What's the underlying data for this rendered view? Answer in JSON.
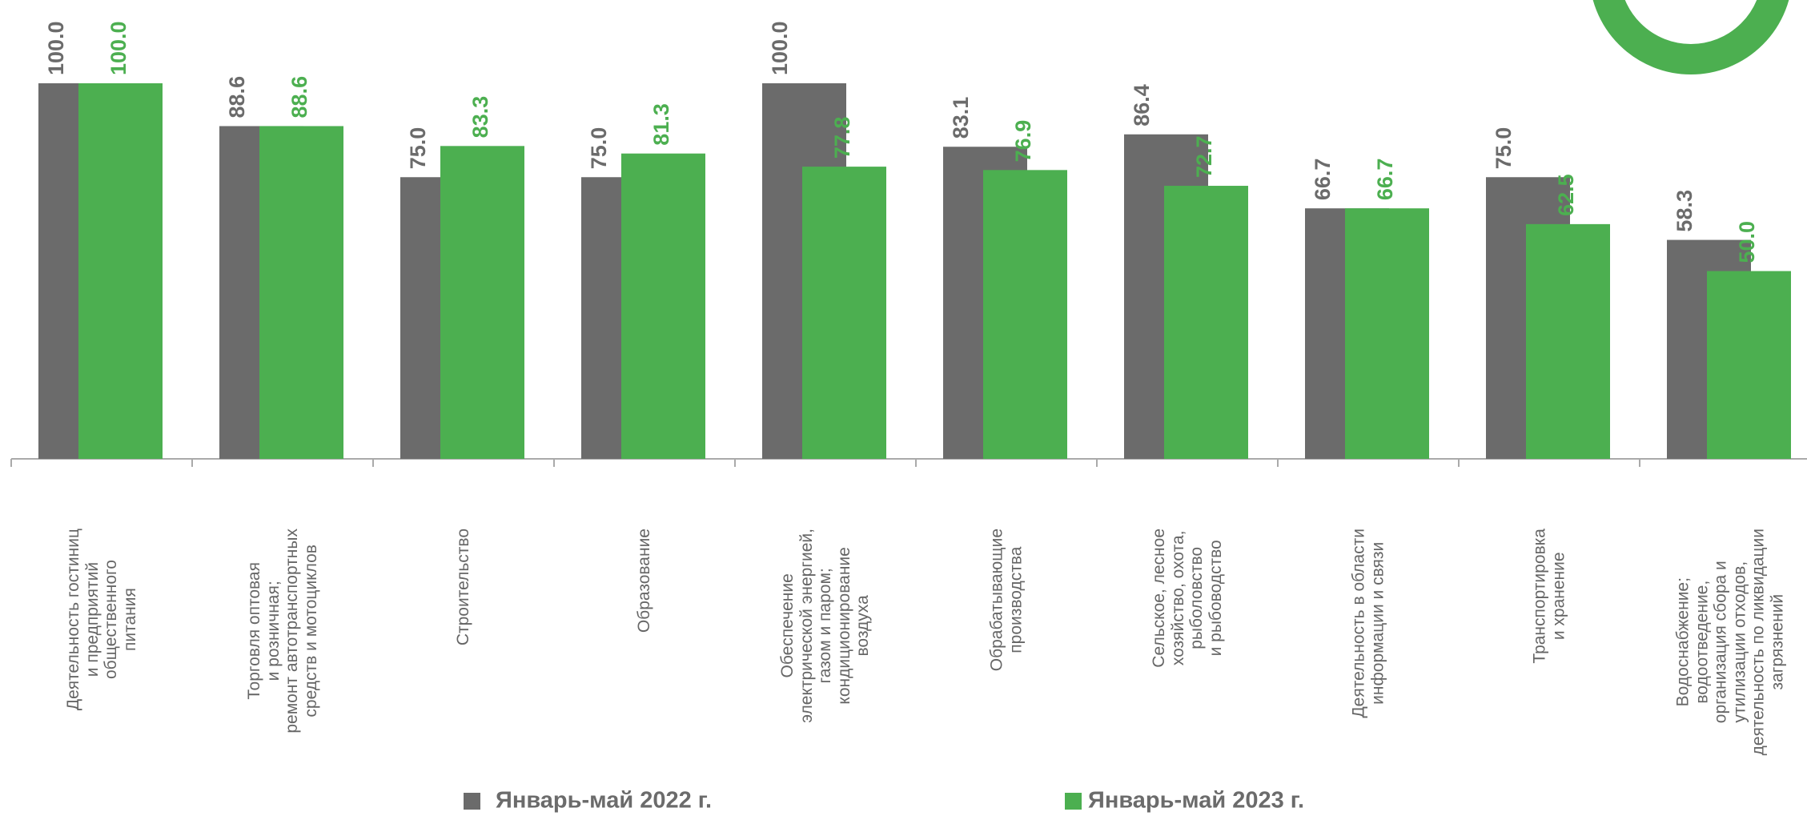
{
  "chart_data": {
    "type": "bar",
    "categories": [
      "Деятельность гостиниц\nи предприятий\nобщественного\nпитания",
      "Торговля оптовая\nи розничная;\nремонт автотранспортных\nсредств и мотоциклов",
      "Строительство",
      "Образование",
      "Обеспечение\nэлектрической энергией,\nгазом и паром;\nкондиционирование\nвоздуха",
      "Обрабатывающие\nпроизводства",
      "Сельское, лесное\nхозяйство, охота,\nрыболовство\nи рыбоводство",
      "Деятельность в области\nинформации и связи",
      "Транспортировка\nи хранение",
      "Водоснабжение;\nводоотведение,\nорганизация сбора и\nутилизации отходов,\nдеятельность по ликвидации\nзагрязнений"
    ],
    "series": [
      {
        "name": "Январь-май 2022 г.",
        "color": "#6b6b6b",
        "values": [
          100,
          88.6,
          75,
          75,
          100,
          83.1,
          86.4,
          66.7,
          75,
          58.3
        ],
        "value_labels": [
          "100.0",
          "88.6",
          "75.0",
          "75.0",
          "100.0",
          "83.1",
          "86.4",
          "66.7",
          "75.0",
          "58.3"
        ]
      },
      {
        "name": "Январь-май 2023 г.",
        "color": "#4caf50",
        "values": [
          100,
          88.6,
          83.3,
          81.3,
          77.8,
          76.9,
          72.7,
          66.7,
          62.5,
          50
        ],
        "value_labels": [
          "100.0",
          "88.6",
          "83.3",
          "81.3",
          "77.8",
          "76.9",
          "72.7",
          "66.7",
          "62.5",
          "50.0"
        ]
      }
    ],
    "ylim": [
      0,
      100
    ]
  }
}
